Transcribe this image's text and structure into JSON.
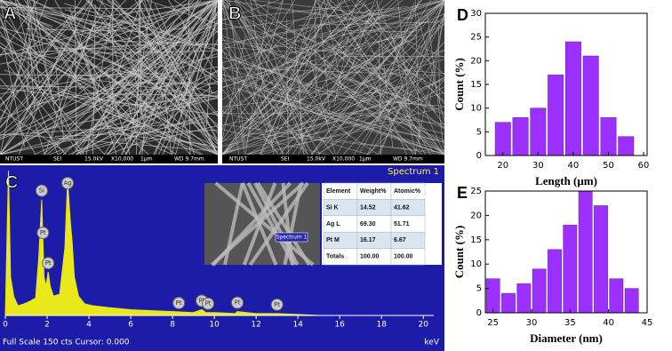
{
  "panel_labels": [
    "A",
    "B",
    "C",
    "D",
    "E"
  ],
  "sem_images": [
    {
      "footer": [
        "NTUST",
        "SEI",
        "15.0kV",
        "X10,000",
        "1μm",
        "WD 9.7mm"
      ]
    },
    {
      "footer": [
        "NTUST",
        "SEI",
        "15.0kV",
        "X10,000",
        "1μm",
        "WD 9.7mm"
      ]
    }
  ],
  "inset_label": "Spectrum 1",
  "table": {
    "header": [
      "Element",
      "Weight%",
      "Atomic%"
    ],
    "rows": [
      [
        "Si K",
        "14.52",
        "41.62"
      ],
      [
        "Ag L",
        "69.30",
        "51.71"
      ],
      [
        "Pt M",
        "16.17",
        "6.67"
      ],
      [
        "Totals",
        "100.00",
        "100.00"
      ]
    ]
  },
  "chart_data": [
    {
      "type": "spectrum",
      "title": "Spectrum 1",
      "footer": "Full Scale 150 cts Cursor: 0.000",
      "x_label": "keV",
      "color": "#e8e81a",
      "x": [
        0,
        0.15,
        0.25,
        0.4,
        0.6,
        0.9,
        1.2,
        1.45,
        1.6,
        1.74,
        1.85,
        1.95,
        2.05,
        2.15,
        2.3,
        2.6,
        2.85,
        2.98,
        3.1,
        3.2,
        3.3,
        3.5,
        3.8,
        4.2,
        5,
        6,
        7,
        8,
        9,
        9.4,
        9.6,
        10,
        11,
        11.1,
        12,
        13,
        14,
        15,
        16,
        18,
        20
      ],
      "values": [
        0,
        150,
        40,
        20,
        10,
        12,
        15,
        18,
        60,
        120,
        40,
        30,
        45,
        30,
        20,
        22,
        70,
        140,
        100,
        75,
        40,
        20,
        12,
        10,
        8,
        6,
        5,
        4,
        3,
        6,
        3,
        3,
        2,
        4,
        2,
        2,
        1,
        0,
        0,
        0,
        0
      ],
      "xlim": [
        0,
        20.5
      ],
      "ylim": [
        0,
        150
      ],
      "xticks": [
        0,
        2,
        4,
        6,
        8,
        10,
        12,
        14,
        16,
        18,
        20
      ],
      "markers": [
        {
          "label": "Pt",
          "x": 1.8
        },
        {
          "label": "Si",
          "x": 1.74
        },
        {
          "label": "Ag",
          "x": 2.98
        },
        {
          "label": "Pt",
          "x": 2.05
        },
        {
          "label": "Pt",
          "x": 8.3
        },
        {
          "label": "Pt",
          "x": 9.4
        },
        {
          "label": "Pt",
          "x": 9.7
        },
        {
          "label": "Pt",
          "x": 11.1
        },
        {
          "label": "Pt",
          "x": 13
        }
      ]
    },
    {
      "type": "histogram",
      "x_label": "Length (μm)",
      "y_label": "Count (%)",
      "color": "#9b30ff",
      "x": [
        20,
        25,
        30,
        35,
        40,
        45,
        50,
        55
      ],
      "values": [
        7,
        8,
        10,
        17,
        24,
        21,
        8,
        4
      ],
      "xlim": [
        15,
        61
      ],
      "ylim": [
        0,
        30
      ],
      "xticks": [
        20,
        30,
        40,
        50,
        60
      ],
      "yticks": [
        0,
        5,
        10,
        15,
        20,
        25,
        30
      ]
    },
    {
      "type": "histogram",
      "x_label": "Diameter (nm)",
      "y_label": "Count (%)",
      "color": "#9b30ff",
      "x": [
        25,
        27,
        29,
        31,
        33,
        35,
        37,
        39,
        41,
        43
      ],
      "values": [
        7,
        4,
        6,
        9,
        13,
        18,
        25,
        22,
        7,
        5
      ],
      "xlim": [
        24,
        45
      ],
      "ylim": [
        0,
        25
      ],
      "xticks": [
        25,
        30,
        35,
        40,
        45
      ],
      "yticks": [
        0,
        5,
        10,
        15,
        20,
        25
      ]
    }
  ]
}
